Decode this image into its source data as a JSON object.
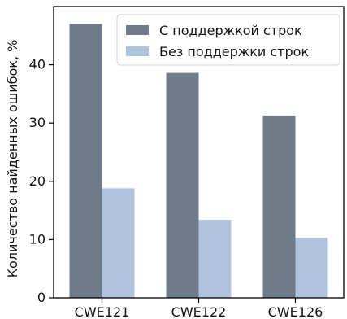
{
  "chart_data": {
    "type": "bar",
    "categories": [
      "CWE121",
      "CWE122",
      "CWE126"
    ],
    "series": [
      {
        "name": "С поддержкой строк",
        "values": [
          47,
          38.6,
          31.3
        ],
        "color": "#6e7b8b"
      },
      {
        "name": "Без поддержки строк",
        "values": [
          18.8,
          13.4,
          10.3
        ],
        "color": "#b0c4de"
      }
    ],
    "ylabel": "Количество найденных ошибок, %",
    "xlabel": "",
    "ylim": [
      0,
      50
    ],
    "yticks": [
      0,
      10,
      20,
      30,
      40
    ],
    "legend_position": "top-right",
    "grid": false
  }
}
